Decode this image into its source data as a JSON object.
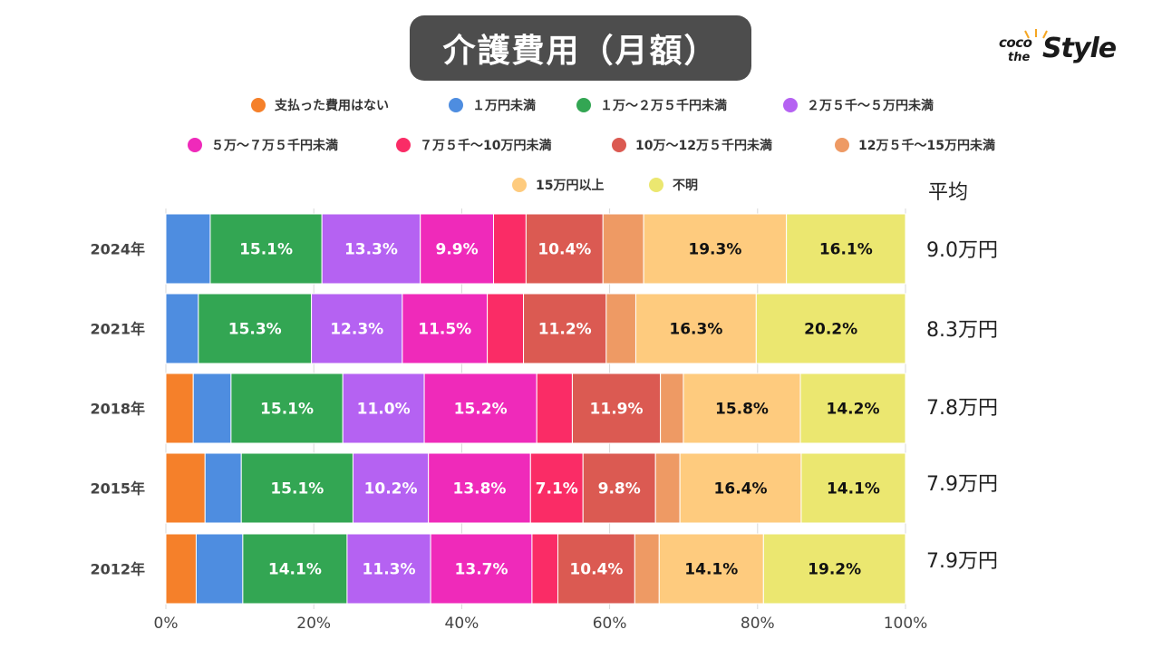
{
  "title": "介護費用（月額）",
  "logo": {
    "coco": "coco",
    "the": "the",
    "style": "Style"
  },
  "average_header": "平均",
  "colors": {
    "支払った費用はない": "#f5802a",
    "１万円未満": "#4e8de0",
    "１万～２万５千円未満": "#33a653",
    "２万５千～５万円未満": "#b562f2",
    "５万～７万５千円未満": "#ef2aba",
    "７万５千～10万円未満": "#fa2c66",
    "10万～12万５千円未満": "#db5a52",
    "12万５千～15万円未満": "#ee9a64",
    "15万円以上": "#fecb7e",
    "不明": "#ebe770"
  },
  "chart_data": {
    "type": "bar",
    "orientation": "horizontal",
    "stacked": true,
    "title": "介護費用（月額）",
    "xlabel": "",
    "ylabel": "",
    "xlim": [
      0,
      100
    ],
    "x_ticks": [
      "0%",
      "20%",
      "40%",
      "60%",
      "80%",
      "100%"
    ],
    "categories": [
      "2024年",
      "2021年",
      "2018年",
      "2015年",
      "2012年"
    ],
    "legend_position": "top",
    "series": [
      {
        "name": "支払った費用はない",
        "values": [
          0,
          0,
          3.7,
          5.3,
          4.1
        ],
        "labels": [
          "",
          "",
          "",
          "",
          ""
        ]
      },
      {
        "name": "１万円未満",
        "values": [
          6.0,
          4.4,
          5.1,
          4.9,
          6.3
        ],
        "labels": [
          "",
          "",
          "",
          "",
          ""
        ]
      },
      {
        "name": "１万～２万５千円未満",
        "values": [
          15.1,
          15.3,
          15.1,
          15.1,
          14.1
        ],
        "labels": [
          "15.1%",
          "15.3%",
          "15.1%",
          "15.1%",
          "14.1%"
        ]
      },
      {
        "name": "２万５千～５万円未満",
        "values": [
          13.3,
          12.3,
          11.0,
          10.2,
          11.3
        ],
        "labels": [
          "13.3%",
          "12.3%",
          "11.0%",
          "10.2%",
          "11.3%"
        ]
      },
      {
        "name": "５万～７万５千円未満",
        "values": [
          9.9,
          11.5,
          15.2,
          13.8,
          13.7
        ],
        "labels": [
          "9.9%",
          "11.5%",
          "15.2%",
          "13.8%",
          "13.7%"
        ]
      },
      {
        "name": "７万５千～10万円未満",
        "values": [
          4.4,
          4.9,
          4.8,
          7.1,
          3.5
        ],
        "labels": [
          "",
          "",
          "",
          "7.1%",
          ""
        ]
      },
      {
        "name": "10万～12万５千円未満",
        "values": [
          10.4,
          11.2,
          11.9,
          9.8,
          10.4
        ],
        "labels": [
          "10.4%",
          "11.2%",
          "11.9%",
          "9.8%",
          "10.4%"
        ]
      },
      {
        "name": "12万５千～15万円未満",
        "values": [
          5.5,
          4.0,
          3.1,
          3.3,
          3.3
        ],
        "labels": [
          "",
          "",
          "",
          "",
          ""
        ]
      },
      {
        "name": "15万円以上",
        "values": [
          19.3,
          16.3,
          15.8,
          16.4,
          14.1
        ],
        "labels": [
          "19.3%",
          "16.3%",
          "15.8%",
          "16.4%",
          "14.1%"
        ]
      },
      {
        "name": "不明",
        "values": [
          16.1,
          20.2,
          14.2,
          14.1,
          19.2
        ],
        "labels": [
          "16.1%",
          "20.2%",
          "14.2%",
          "14.1%",
          "19.2%"
        ]
      }
    ],
    "averages": [
      "9.0万円",
      "8.3万円",
      "7.8万円",
      "7.9万円",
      "7.9万円"
    ]
  }
}
